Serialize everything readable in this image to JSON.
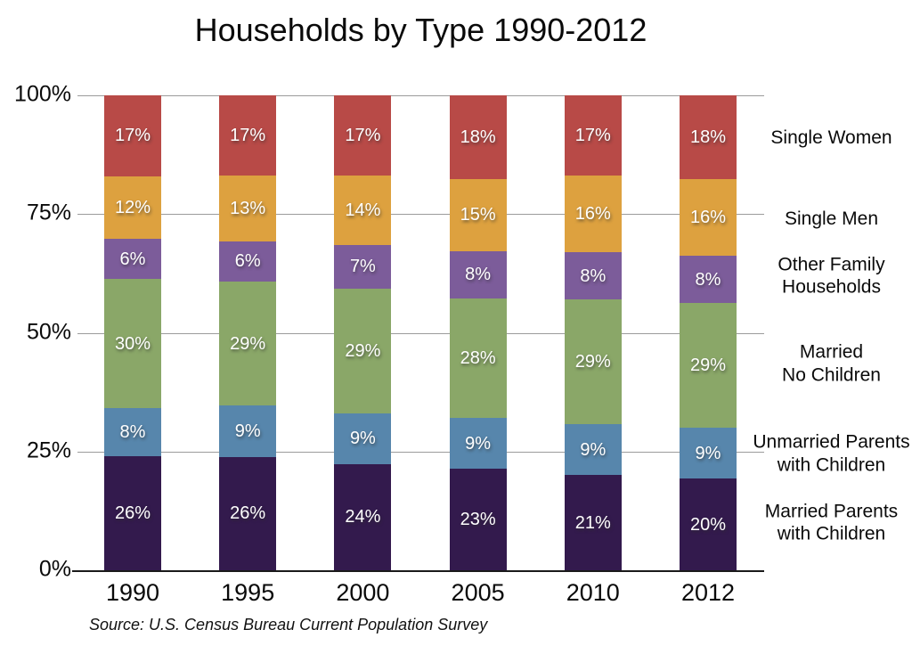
{
  "chart_data": {
    "type": "bar",
    "variant": "stacked-percent",
    "title": "Households by Type 1990-2012",
    "source": "Source: U.S. Census Bureau Current Population Survey",
    "categories": [
      "1990",
      "1995",
      "2000",
      "2005",
      "2010",
      "2012"
    ],
    "y_ticks": [
      "100%",
      "75%",
      "50%",
      "25%",
      "0%"
    ],
    "ylim": [
      0,
      100
    ],
    "grid": "horizontal",
    "legend_position": "right",
    "series": [
      {
        "name": "Single Women",
        "legend_label": "Single Women",
        "color": "#B84A47",
        "values": [
          17,
          17,
          17,
          18,
          17,
          18
        ]
      },
      {
        "name": "Single Men",
        "legend_label": "Single Men",
        "color": "#DDA13F",
        "values": [
          12,
          13,
          14,
          15,
          16,
          16
        ]
      },
      {
        "name": "Other Family Households",
        "legend_label": "Other Family\nHouseholds",
        "color": "#7C5C9A",
        "values": [
          6,
          6,
          7,
          8,
          8,
          8
        ]
      },
      {
        "name": "Married No Children",
        "legend_label": "Married\nNo Children",
        "color": "#8AA768",
        "values": [
          30,
          29,
          29,
          28,
          29,
          29
        ]
      },
      {
        "name": "Unmarried Parents with Children",
        "legend_label": "Unmarried Parents\nwith Children",
        "color": "#5786AC",
        "values": [
          8,
          9,
          9,
          9,
          9,
          9
        ]
      },
      {
        "name": "Married Parents with Children",
        "legend_label": "Married Parents\nwith Children",
        "color": "#331A4D",
        "values": [
          26,
          26,
          24,
          23,
          21,
          20
        ]
      }
    ],
    "colors": {
      "gridline": "#9b9b9b",
      "axis": "#1a1a1a",
      "value_label": "#ffffff",
      "text": "#0a0a0a"
    }
  }
}
